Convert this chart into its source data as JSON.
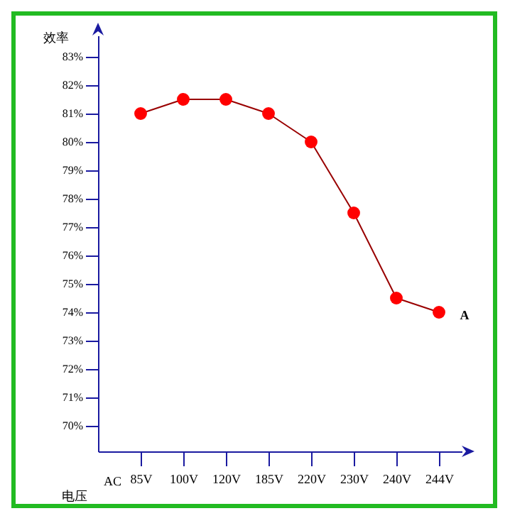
{
  "chart_data": {
    "type": "line",
    "ylabel": "效率",
    "xlabel": "电压",
    "categories": [
      "85V",
      "100V",
      "120V",
      "185V",
      "220V",
      "230V",
      "240V",
      "244V"
    ],
    "series": [
      {
        "color": "#ff0000",
        "values": [
          81,
          81.5,
          81.5,
          81,
          80,
          77.5,
          74.5,
          74
        ]
      }
    ],
    "ylim": [
      69.1,
      83.75
    ],
    "yticks": [
      {
        "value": 83,
        "label": "83%"
      },
      {
        "value": 82,
        "label": "82%"
      },
      {
        "value": 81,
        "label": "81%"
      },
      {
        "value": 80,
        "label": "80%"
      },
      {
        "value": 79,
        "label": "79%"
      },
      {
        "value": 78,
        "label": "78%"
      },
      {
        "value": 77,
        "label": "77%"
      },
      {
        "value": 76,
        "label": "76%"
      },
      {
        "value": 75,
        "label": "75%"
      },
      {
        "value": 74,
        "label": "74%"
      },
      {
        "value": 73,
        "label": "73%"
      },
      {
        "value": 72,
        "label": "72%"
      },
      {
        "value": 71,
        "label": "71%"
      },
      {
        "value": 70,
        "label": "70%"
      }
    ],
    "annotations": [
      "AC",
      {
        "text": "A",
        "x": "244V",
        "y": 74
      }
    ],
    "marker": "circle",
    "line_style": "solid",
    "grid": false
  }
}
